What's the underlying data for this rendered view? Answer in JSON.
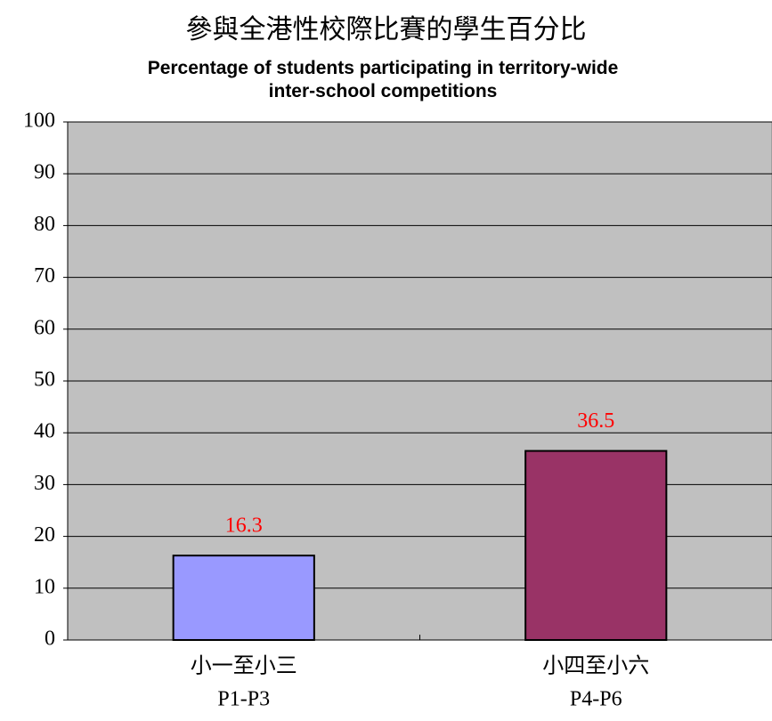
{
  "chart_data": {
    "type": "bar",
    "title": "參與全港性校際比賽的學生百分比",
    "subtitle": "Percentage of students participating in territory-wide inter-school competitions",
    "categories": [
      [
        "小一至小三",
        "P1-P3"
      ],
      [
        "小四至小六",
        "P4-P6"
      ]
    ],
    "values": [
      16.3,
      36.5
    ],
    "colors": [
      "#9999ff",
      "#993366"
    ],
    "value_label_color": "#ff0000",
    "ylim": [
      0,
      100
    ],
    "yticks": [
      0,
      10,
      20,
      30,
      40,
      50,
      60,
      70,
      80,
      90,
      100
    ],
    "grid": true
  }
}
